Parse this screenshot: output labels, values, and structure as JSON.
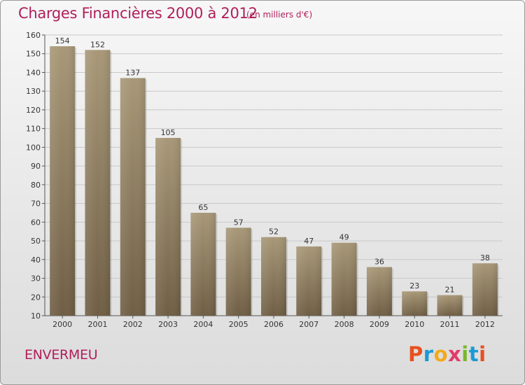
{
  "header": {
    "title": "Charges Financières 2000 à 2012",
    "subtitle": "(en milliers d'€)"
  },
  "footer": {
    "commune": "ENVERMEU",
    "logo": [
      "P",
      "r",
      "o",
      "x",
      "i",
      "t",
      "i"
    ]
  },
  "colors": {
    "accent": "#b01f5a",
    "bar_top": "#a89878",
    "bar_bottom": "#6f5e44",
    "logo_letters": [
      "#e8501e",
      "#1b9ad6",
      "#f2a91d",
      "#e23b6b",
      "#7bb72b",
      "#1b9ad6",
      "#e8501e"
    ]
  },
  "chart_data": {
    "type": "bar",
    "title": "Charges Financières 2000 à 2012",
    "subtitle": "(en milliers d'€)",
    "categories": [
      "2000",
      "2001",
      "2002",
      "2003",
      "2004",
      "2005",
      "2006",
      "2007",
      "2008",
      "2009",
      "2010",
      "2011",
      "2012"
    ],
    "values": [
      154,
      152,
      137,
      105,
      65,
      57,
      52,
      47,
      49,
      36,
      23,
      21,
      38
    ],
    "ylim": [
      10,
      160
    ],
    "yticks": [
      10,
      20,
      30,
      40,
      50,
      60,
      70,
      80,
      90,
      100,
      110,
      120,
      130,
      140,
      150,
      160
    ],
    "grid": true
  }
}
